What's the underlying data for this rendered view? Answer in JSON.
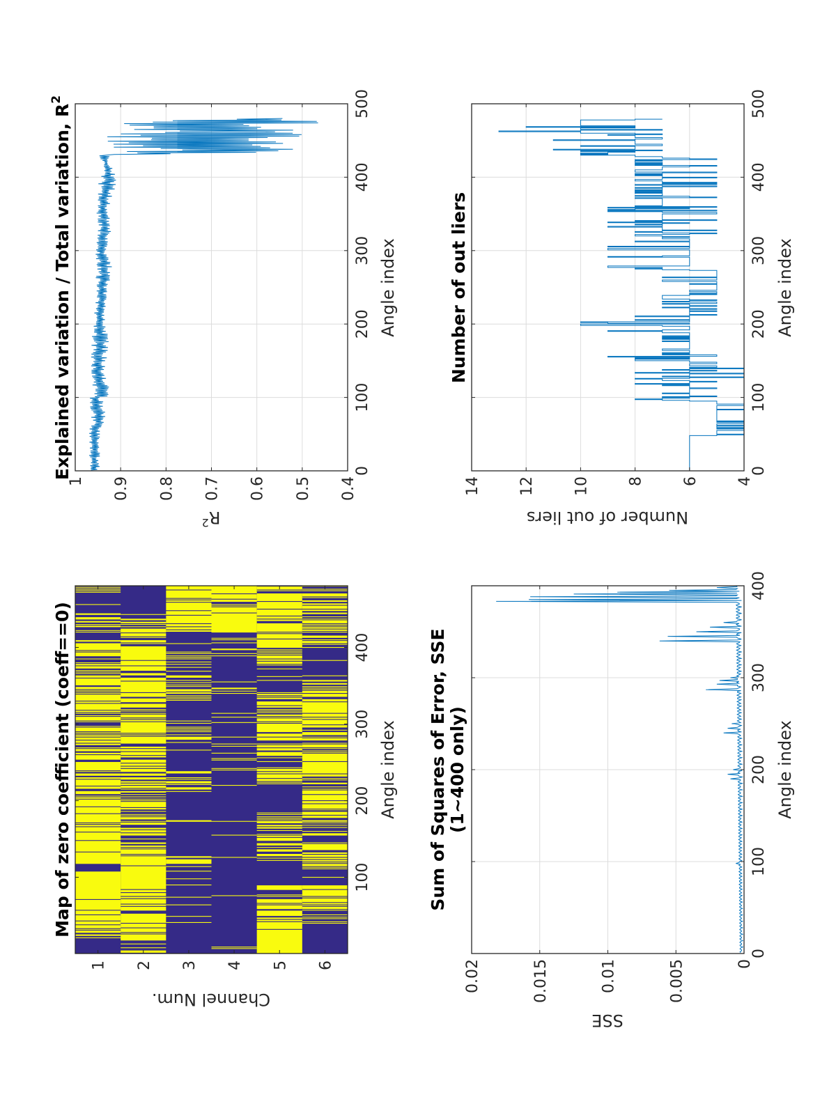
{
  "chart_data": [
    {
      "id": "zero-map",
      "type": "heatmap",
      "title": "Map of zero coefficient (coeff==0)",
      "xlabel": "Angle index",
      "ylabel": "Channel Num.",
      "xlim": [
        0.5,
        480.5
      ],
      "ylim": [
        0.5,
        6.5
      ],
      "xticks": [
        100,
        200,
        300,
        400
      ],
      "yticks": [
        1,
        2,
        3,
        4,
        5,
        6
      ],
      "colors": {
        "zero": "#f9fb0e",
        "nonzero": "#352a87"
      },
      "channels": [
        {
          "channel": 1,
          "solid_yellow": [
            [
              48,
              112
            ],
            [
              122,
              165
            ],
            [
              170,
              200
            ]
          ],
          "solid_navy": [
            [
              1,
              20
            ],
            [
              108,
              116
            ],
            [
              412,
              418
            ],
            [
              445,
              470
            ]
          ],
          "stripe_yellow_fraction": 0.65
        },
        {
          "channel": 2,
          "solid_yellow": [
            [
              48,
              118
            ],
            [
              275,
              300
            ],
            [
              340,
              360
            ],
            [
              380,
              398
            ]
          ],
          "solid_navy": [
            [
              435,
              480
            ]
          ],
          "stripe_yellow_fraction": 0.6
        },
        {
          "channel": 3,
          "solid_yellow": [
            [
              400,
              480
            ]
          ],
          "solid_navy": [
            [
              1,
              48
            ],
            [
              50,
              110
            ],
            [
              130,
              210
            ],
            [
              240,
              275
            ],
            [
              300,
              330
            ],
            [
              395,
              420
            ]
          ],
          "stripe_yellow_fraction": 0.45
        },
        {
          "channel": 4,
          "solid_yellow": [
            [
              420,
              480
            ]
          ],
          "solid_navy": [
            [
              1,
              90
            ],
            [
              100,
              170
            ],
            [
              175,
              250
            ],
            [
              260,
              300
            ],
            [
              310,
              390
            ]
          ],
          "stripe_yellow_fraction": 0.2
        },
        {
          "channel": 5,
          "solid_yellow": [
            [
              1,
              40
            ],
            [
              60,
              70
            ],
            [
              285,
              300
            ],
            [
              400,
              430
            ],
            [
              438,
              470
            ]
          ],
          "solid_navy": [
            [
              90,
              120
            ],
            [
              185,
              220
            ],
            [
              340,
              370
            ]
          ],
          "stripe_yellow_fraction": 0.55
        },
        {
          "channel": 6,
          "solid_yellow": [
            [
              65,
              100
            ],
            [
              190,
              210
            ],
            [
              235,
              260
            ],
            [
              300,
              330
            ]
          ],
          "solid_navy": [
            [
              1,
              45
            ],
            [
              90,
              110
            ],
            [
              360,
              400
            ]
          ],
          "stripe_yellow_fraction": 0.5
        }
      ]
    },
    {
      "id": "r-squared",
      "type": "line",
      "title": "Explained variation / Total variation, R",
      "title_superscript": "2",
      "xlabel": "Angle index",
      "ylabel": "R",
      "ylabel_superscript": "2",
      "xlim": [
        0,
        500
      ],
      "ylim": [
        0.4,
        1
      ],
      "xticks": [
        0,
        100,
        200,
        300,
        400,
        500
      ],
      "yticks": [
        0.4,
        0.5,
        0.6,
        0.7,
        0.8,
        0.9,
        1
      ],
      "ytick_labels": [
        "0.4",
        "0.5",
        "0.6",
        "0.7",
        "0.8",
        "0.9",
        "1"
      ],
      "color": "#0072bd",
      "grid": true,
      "series": [
        {
          "name": "R2",
          "x": [
            1,
            50,
            70,
            100,
            104,
            130,
            180,
            200,
            240,
            250,
            270,
            300,
            330,
            360,
            390,
            400,
            410,
            420,
            430,
            435,
            440,
            445,
            450,
            455,
            460,
            465,
            470,
            475,
            480
          ],
          "lower_envelope": [
            0.946,
            0.945,
            0.93,
            0.94,
            0.915,
            0.935,
            0.925,
            0.935,
            0.93,
            0.93,
            0.915,
            0.93,
            0.92,
            0.925,
            0.91,
            0.91,
            0.915,
            0.93,
            0.92,
            0.46,
            0.46,
            0.48,
            0.5,
            0.46,
            0.47,
            0.53,
            0.5,
            0.43,
            0.53
          ],
          "upper_envelope": [
            0.97,
            0.97,
            0.965,
            0.97,
            0.96,
            0.965,
            0.965,
            0.96,
            0.955,
            0.955,
            0.955,
            0.955,
            0.95,
            0.955,
            0.95,
            0.945,
            0.94,
            0.935,
            0.955,
            0.9,
            0.94,
            0.92,
            0.95,
            0.93,
            0.9,
            0.9,
            0.91,
            0.96,
            0.62
          ]
        }
      ]
    },
    {
      "id": "sse",
      "type": "line",
      "title": "Sum of Squares of Error, SSE",
      "title_line2": "(1~400 only)",
      "xlabel": "Angle index",
      "ylabel": "SSE",
      "xlim": [
        0,
        400
      ],
      "ylim": [
        0,
        0.02
      ],
      "xticks": [
        0,
        100,
        200,
        300,
        400
      ],
      "yticks": [
        0,
        0.005,
        0.01,
        0.015,
        0.02
      ],
      "ytick_labels": [
        "0",
        "0.005",
        "0.01",
        "0.015",
        "0.02"
      ],
      "color": "#0072bd",
      "grid": true,
      "series": [
        {
          "name": "SSE",
          "baseline": 0.0003,
          "spikes": [
            [
              98,
              0.0006
            ],
            [
              190,
              0.001
            ],
            [
              195,
              0.0012
            ],
            [
              200,
              0.0008
            ],
            [
              240,
              0.0015
            ],
            [
              245,
              0.0012
            ],
            [
              250,
              0.0009
            ],
            [
              287,
              0.0028
            ],
            [
              293,
              0.002
            ],
            [
              297,
              0.0018
            ],
            [
              300,
              0.001
            ],
            [
              340,
              0.0062
            ],
            [
              345,
              0.0056
            ],
            [
              350,
              0.0035
            ],
            [
              355,
              0.0025
            ],
            [
              360,
              0.0015
            ],
            [
              383,
              0.0182
            ],
            [
              385,
              0.0158
            ],
            [
              388,
              0.0157
            ],
            [
              391,
              0.0125
            ],
            [
              393,
              0.0093
            ],
            [
              395,
              0.0055
            ],
            [
              398,
              0.002
            ]
          ]
        }
      ]
    },
    {
      "id": "outliers",
      "type": "line",
      "title": "Number of out liers",
      "xlabel": "Angle index",
      "ylabel": "Number of out liers",
      "xlim": [
        0,
        500
      ],
      "ylim": [
        4,
        14
      ],
      "xticks": [
        0,
        100,
        200,
        300,
        400,
        500
      ],
      "yticks": [
        4,
        6,
        8,
        10,
        12,
        14
      ],
      "color": "#0072bd",
      "grid": true,
      "series": [
        {
          "name": "outliers",
          "segments": [
            {
              "x": [
                1,
                48
              ],
              "level": 6,
              "low": 6,
              "high": 6
            },
            {
              "x": [
                48,
                95
              ],
              "level": 5,
              "low": 4,
              "high": 5
            },
            {
              "x": [
                95,
                140
              ],
              "level": 6,
              "low": 4,
              "high": 8
            },
            {
              "x": [
                140,
                160
              ],
              "level": 6,
              "low": 5,
              "high": 10
            },
            {
              "x": [
                160,
                190
              ],
              "level": 6,
              "low": 6,
              "high": 7
            },
            {
              "x": [
                190,
                212
              ],
              "level": 6,
              "low": 6,
              "high": 10
            },
            {
              "x": [
                212,
                240
              ],
              "level": 6,
              "low": 5,
              "high": 7
            },
            {
              "x": [
                240,
                275
              ],
              "level": 5,
              "low": 5,
              "high": 7
            },
            {
              "x": [
                275,
                315
              ],
              "level": 6,
              "low": 6,
              "high": 9
            },
            {
              "x": [
                315,
                375
              ],
              "level": 7,
              "low": 5,
              "high": 9
            },
            {
              "x": [
                375,
                430
              ],
              "level": 7,
              "low": 5,
              "high": 8
            },
            {
              "x": [
                430,
                460
              ],
              "level": 8,
              "low": 7,
              "high": 11
            },
            {
              "x": [
                460,
                480
              ],
              "level": 10,
              "low": 7,
              "high": 13
            }
          ]
        }
      ]
    }
  ]
}
